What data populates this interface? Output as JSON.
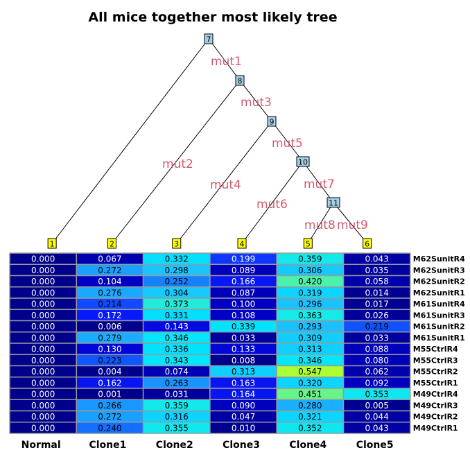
{
  "title": "All mice together most likely tree",
  "tree": {
    "nodes": [
      {
        "id": "7",
        "kind": "internal"
      },
      {
        "id": "8",
        "kind": "internal"
      },
      {
        "id": "9",
        "kind": "internal"
      },
      {
        "id": "10",
        "kind": "internal"
      },
      {
        "id": "11",
        "kind": "internal"
      },
      {
        "id": "1",
        "kind": "leaf",
        "column": "Normal"
      },
      {
        "id": "2",
        "kind": "leaf",
        "column": "Clone1"
      },
      {
        "id": "3",
        "kind": "leaf",
        "column": "Clone2"
      },
      {
        "id": "4",
        "kind": "leaf",
        "column": "Clone3"
      },
      {
        "id": "5",
        "kind": "leaf",
        "column": "Clone4"
      },
      {
        "id": "6",
        "kind": "leaf",
        "column": "Clone5"
      }
    ],
    "edges": [
      {
        "from": "7",
        "to": "1",
        "label": ""
      },
      {
        "from": "7",
        "to": "8",
        "label": "mut1"
      },
      {
        "from": "8",
        "to": "2",
        "label": "mut2"
      },
      {
        "from": "8",
        "to": "9",
        "label": "mut3"
      },
      {
        "from": "9",
        "to": "3",
        "label": "mut4"
      },
      {
        "from": "9",
        "to": "10",
        "label": "mut5"
      },
      {
        "from": "10",
        "to": "4",
        "label": "mut6"
      },
      {
        "from": "10",
        "to": "11",
        "label": "mut7"
      },
      {
        "from": "11",
        "to": "5",
        "label": "mut8"
      },
      {
        "from": "11",
        "to": "6",
        "label": "mut9"
      }
    ],
    "colors": {
      "internal_node": "#a6cfe8",
      "leaf_node": "#ffff00",
      "edge_label": "#d05a6e"
    }
  },
  "heatmap": {
    "columns": [
      "Normal",
      "Clone1",
      "Clone2",
      "Clone3",
      "Clone4",
      "Clone5"
    ],
    "rows": [
      {
        "name": "M62SunitR4",
        "values": [
          "0.000",
          "0.067",
          "0.332",
          "0.199",
          "0.359",
          "0.043"
        ]
      },
      {
        "name": "M62SunitR3",
        "values": [
          "0.000",
          "0.272",
          "0.298",
          "0.089",
          "0.306",
          "0.035"
        ]
      },
      {
        "name": "M62SunitR2",
        "values": [
          "0.000",
          "0.104",
          "0.252",
          "0.166",
          "0.420",
          "0.058"
        ]
      },
      {
        "name": "M62SunitR1",
        "values": [
          "0.000",
          "0.276",
          "0.304",
          "0.087",
          "0.319",
          "0.014"
        ]
      },
      {
        "name": "M61SunitR4",
        "values": [
          "0.000",
          "0.214",
          "0.373",
          "0.100",
          "0.296",
          "0.017"
        ]
      },
      {
        "name": "M61SunitR3",
        "values": [
          "0.000",
          "0.172",
          "0.331",
          "0.108",
          "0.363",
          "0.026"
        ]
      },
      {
        "name": "M61SunitR2",
        "values": [
          "0.000",
          "0.006",
          "0.143",
          "0.339",
          "0.293",
          "0.219"
        ]
      },
      {
        "name": "M61SunitR1",
        "values": [
          "0.000",
          "0.279",
          "0.346",
          "0.033",
          "0.309",
          "0.033"
        ]
      },
      {
        "name": "M55CtrlR4",
        "values": [
          "0.000",
          "0.130",
          "0.336",
          "0.133",
          "0.313",
          "0.088"
        ]
      },
      {
        "name": "M55CtrlR3",
        "values": [
          "0.000",
          "0.223",
          "0.343",
          "0.008",
          "0.346",
          "0.080"
        ]
      },
      {
        "name": "M55CtrlR2",
        "values": [
          "0.000",
          "0.004",
          "0.074",
          "0.313",
          "0.547",
          "0.062"
        ]
      },
      {
        "name": "M55CtrlR1",
        "values": [
          "0.000",
          "0.162",
          "0.263",
          "0.163",
          "0.320",
          "0.092"
        ]
      },
      {
        "name": "M49CtrlR4",
        "values": [
          "0.000",
          "0.001",
          "0.031",
          "0.164",
          "0.451",
          "0.353"
        ]
      },
      {
        "name": "M49CtrlR3",
        "values": [
          "0.000",
          "0.266",
          "0.359",
          "0.090",
          "0.280",
          "0.005"
        ]
      },
      {
        "name": "M49CtrlR2",
        "values": [
          "0.000",
          "0.272",
          "0.316",
          "0.047",
          "0.321",
          "0.044"
        ]
      },
      {
        "name": "M49CtrlR1",
        "values": [
          "0.000",
          "0.240",
          "0.355",
          "0.010",
          "0.352",
          "0.043"
        ]
      }
    ],
    "colors": {
      "low": "#00008b",
      "mid_low": "#0000ff",
      "mid": "#1e90ff",
      "mid_high": "#00e5ff",
      "high": "#adff2f",
      "grid": "#9a9a9a"
    }
  }
}
